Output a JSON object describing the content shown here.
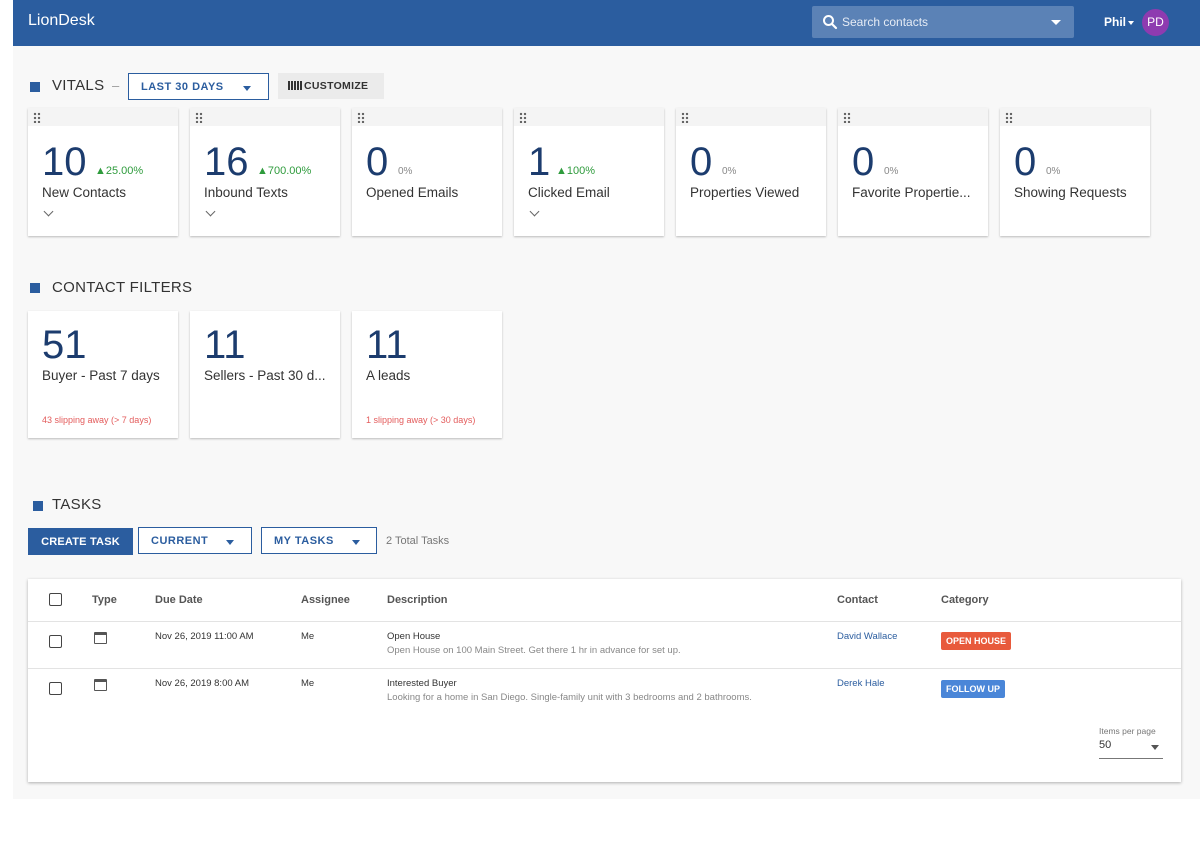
{
  "header": {
    "brand": "LionDesk",
    "search_placeholder": "Search contacts",
    "user_name": "Phil",
    "avatar_initials": "PD",
    "avatar_color": "#8e3bb0",
    "bar_color": "#2b5d9f"
  },
  "vitals": {
    "title": "VITALS",
    "separator": "–",
    "range_label": "LAST 30 DAYS",
    "customize_label": "CUSTOMIZE",
    "cards": [
      {
        "value": "10",
        "change": "▲25.00%",
        "label": "New Contacts"
      },
      {
        "value": "16",
        "change": "▲700.00%",
        "label": "Inbound Texts"
      },
      {
        "value": "0",
        "change": "0%",
        "label": "Opened Emails"
      },
      {
        "value": "1",
        "change": "▲100%",
        "label": "Clicked Email"
      },
      {
        "value": "0",
        "change": "0%",
        "label": "Properties Viewed"
      },
      {
        "value": "0",
        "change": "0%",
        "label": "Favorite Propertie..."
      },
      {
        "value": "0",
        "change": "0%",
        "label": "Showing Requests"
      }
    ]
  },
  "contact_filters": {
    "title": "CONTACT FILTERS",
    "cards": [
      {
        "value": "51",
        "label": "Buyer - Past 7 days",
        "note": "43 slipping away (> 7 days)"
      },
      {
        "value": "11",
        "label": "Sellers - Past 30 d...",
        "note": ""
      },
      {
        "value": "11",
        "label": "A leads",
        "note": "1 slipping away (> 30 days)"
      }
    ]
  },
  "tasks": {
    "title": "TASKS",
    "create_label": "CREATE TASK",
    "filter_current": "CURRENT",
    "filter_scope": "MY TASKS",
    "total_text": "2 Total Tasks",
    "columns": [
      "Type",
      "Due Date",
      "Assignee",
      "Description",
      "Contact",
      "Category"
    ],
    "rows": [
      {
        "type_icon": "calendar-icon",
        "due": "Nov 26, 2019 11:00 AM",
        "assignee": "Me",
        "title": "Open House",
        "description": "Open House on 100 Main Street. Get there 1 hr in advance for set up.",
        "contact": "David Wallace",
        "category": "OPEN HOUSE",
        "category_color": "#e85a3c"
      },
      {
        "type_icon": "calendar-icon",
        "due": "Nov 26, 2019 8:00 AM",
        "assignee": "Me",
        "title": "Interested Buyer",
        "description": "Looking for a home in San Diego. Single-family unit with 3 bedrooms and 2 bathrooms.",
        "contact": "Derek Hale",
        "category": "FOLLOW UP",
        "category_color": "#4a86d8"
      }
    ],
    "items_per_page_label": "Items per page",
    "items_per_page_value": "50"
  }
}
